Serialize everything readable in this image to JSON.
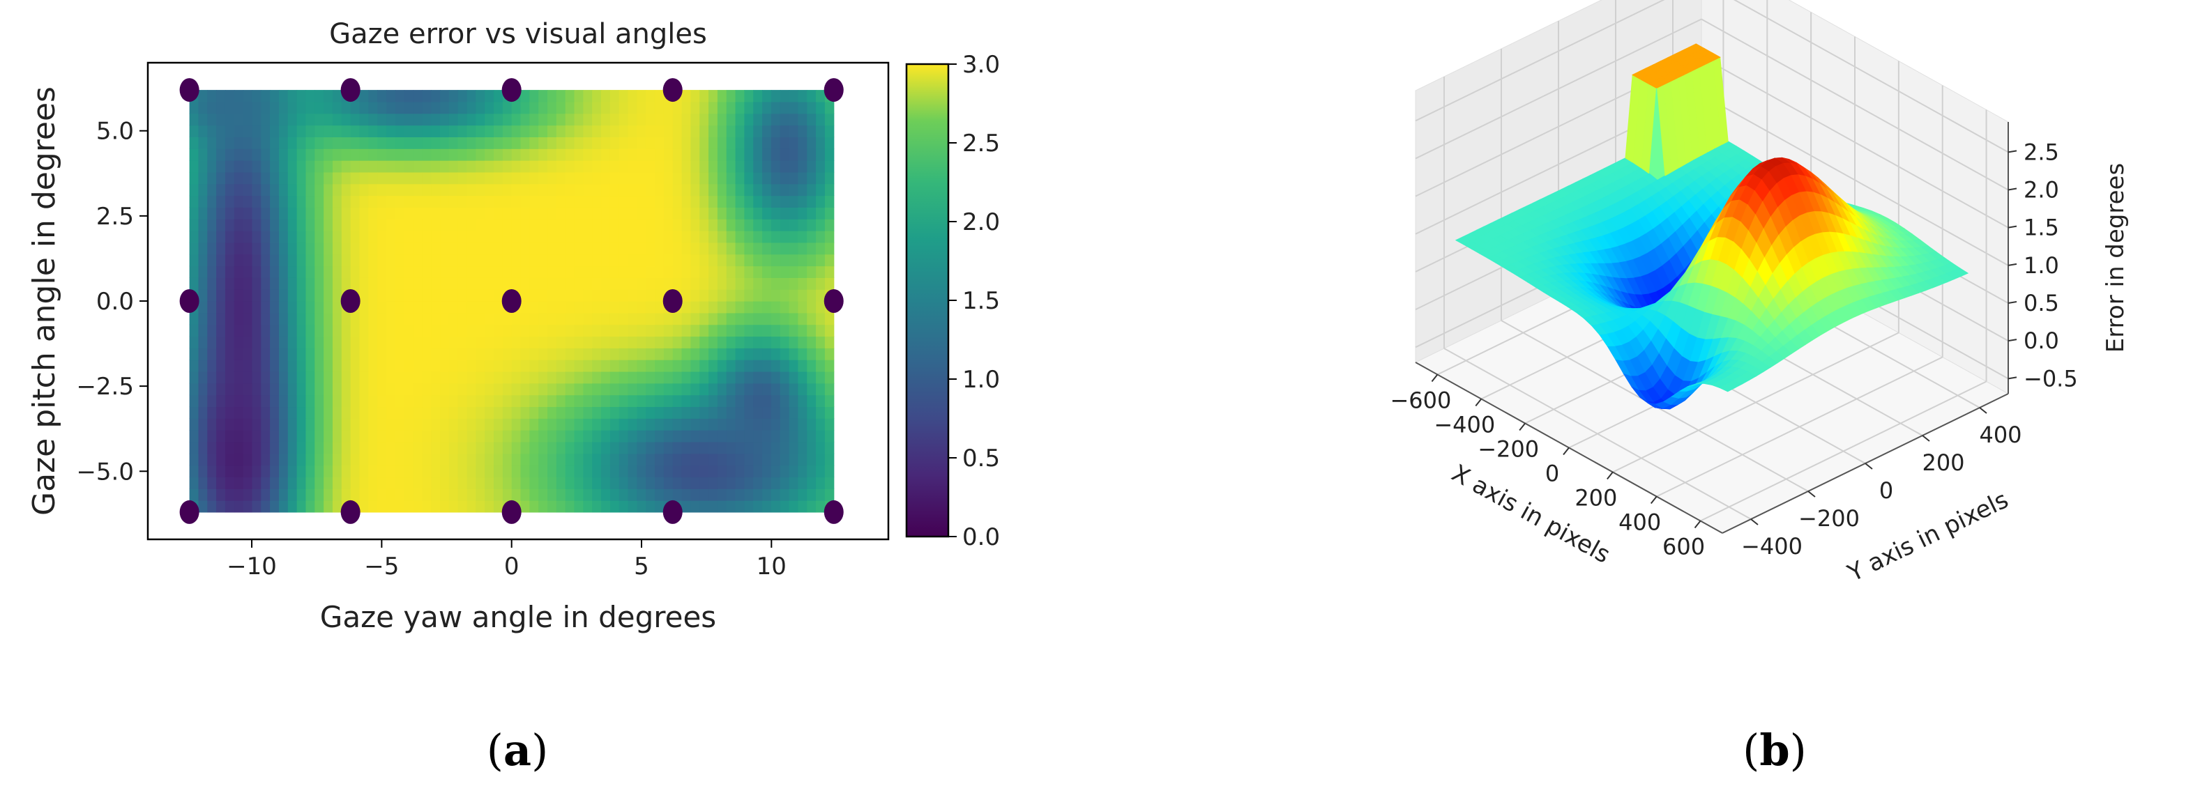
{
  "captions": {
    "a": "a",
    "b": "b"
  },
  "chart_data": [
    {
      "id": "a",
      "type": "heatmap",
      "title": "Gaze error vs visual angles",
      "xlabel": "Gaze yaw angle in degrees",
      "ylabel": "Gaze pitch angle in degrees",
      "xlim": [
        -14,
        14.5
      ],
      "ylim": [
        -7,
        7
      ],
      "xticks": [
        -10,
        -5,
        0,
        5,
        10
      ],
      "yticks": [
        -5.0,
        -2.5,
        0.0,
        2.5,
        5.0
      ],
      "xtick_labels": [
        "−10",
        "−5",
        "0",
        "5",
        "10"
      ],
      "ytick_labels": [
        "−5.0",
        "−2.5",
        "0.0",
        "2.5",
        "5.0"
      ],
      "extent": {
        "x": [
          -12.4,
          12.4
        ],
        "y": [
          -6.2,
          6.2
        ]
      },
      "colormap": "viridis",
      "colorbar": {
        "range": [
          0,
          3
        ],
        "ticks": [
          0.0,
          0.5,
          1.0,
          1.5,
          2.0,
          2.5,
          3.0
        ],
        "tick_labels": [
          "0.0",
          "0.5",
          "1.0",
          "1.5",
          "2.0",
          "2.5",
          "3.0"
        ]
      },
      "field": {
        "base": 3.0,
        "low_regions": [
          {
            "x": -10.4,
            "y": 0.0,
            "sx": 1.6,
            "sy": 5.8,
            "value": 0.4
          },
          {
            "x": -10.6,
            "y": -4.6,
            "sx": 1.4,
            "sy": 2.2,
            "value": 0.3
          },
          {
            "x": -3.8,
            "y": 6.0,
            "sx": 3.2,
            "sy": 1.0,
            "value": 1.1
          },
          {
            "x": -11.0,
            "y": 5.8,
            "sx": 1.5,
            "sy": 0.8,
            "value": 1.2
          },
          {
            "x": 10.6,
            "y": 4.4,
            "sx": 1.5,
            "sy": 1.9,
            "value": 1.0
          },
          {
            "x": 7.4,
            "y": -4.9,
            "sx": 3.6,
            "sy": 1.6,
            "value": 0.8
          },
          {
            "x": 9.6,
            "y": -3.0,
            "sx": 1.4,
            "sy": 1.4,
            "value": 1.0
          }
        ]
      },
      "points": {
        "color": "#440154",
        "x": [
          -12.4,
          -6.2,
          0.0,
          6.2,
          12.4
        ],
        "y": [
          -6.2,
          0.0,
          6.2
        ]
      }
    },
    {
      "id": "b",
      "type": "surface",
      "xlabel": "X axis in pixels",
      "ylabel": "Y axis in pixels",
      "zlabel": "Error in degrees",
      "xlim": [
        -700,
        700
      ],
      "ylim": [
        -500,
        500
      ],
      "zlim": [
        -0.7,
        2.9
      ],
      "xticks": [
        -600,
        -400,
        -200,
        0,
        200,
        400,
        600
      ],
      "yticks": [
        -400,
        -200,
        0,
        200,
        400
      ],
      "zticks": [
        -0.5,
        0.0,
        0.5,
        1.0,
        1.5,
        2.0,
        2.5
      ],
      "xtick_labels": [
        "−600",
        "−400",
        "−200",
        "0",
        "200",
        "400",
        "600"
      ],
      "ytick_labels": [
        "−400",
        "−200",
        "0",
        "200",
        "400"
      ],
      "ztick_labels": [
        "−0.5",
        "0.0",
        "0.5",
        "1.0",
        "1.5",
        "2.0",
        "2.5"
      ],
      "colormap": "jet",
      "surface": {
        "x_range": [
          -620,
          620
        ],
        "y_range": [
          -420,
          420
        ],
        "base": 0.9,
        "peaks": [
          {
            "x": 250,
            "y": 0,
            "sx": 170,
            "sy": 190,
            "amp": 1.8
          },
          {
            "x": -110,
            "y": 10,
            "sx": 160,
            "sy": 170,
            "amp": -1.35
          },
          {
            "x": 250,
            "y": -330,
            "sx": 130,
            "sy": 110,
            "amp": -1.25
          }
        ],
        "ledge": {
          "x_max": -480,
          "y_min": 180,
          "value": 1.95
        }
      }
    }
  ]
}
